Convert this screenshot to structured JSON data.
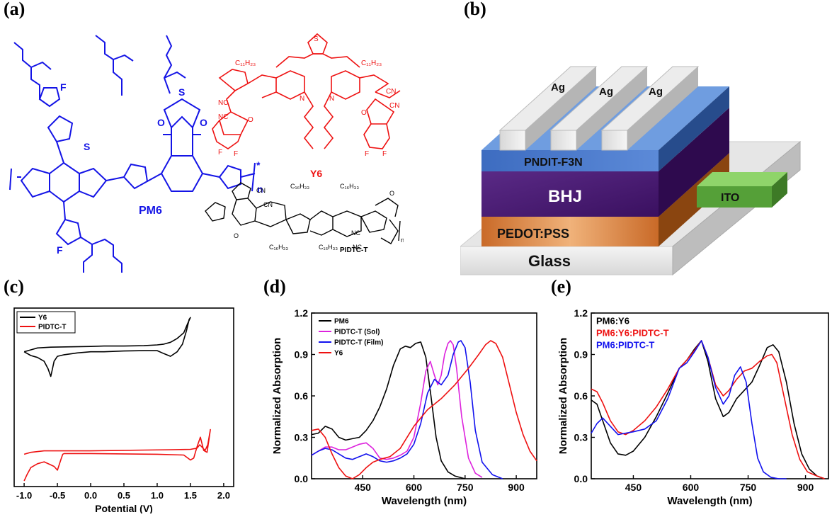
{
  "panels": {
    "a": "(a)",
    "b": "(b)",
    "c": "(c)",
    "d": "(d)",
    "e": "(e)"
  },
  "structures": {
    "pm6_label": "PM6",
    "y6_label": "Y6",
    "pidtc_label": "PIDTC-T",
    "colors": {
      "pm6": "#1414e6",
      "y6": "#ee1111",
      "pidtc": "#000000"
    },
    "pm6_atoms": {
      "f": "F",
      "s": "S",
      "o": "O",
      "n": "n",
      "star": "*"
    },
    "y6_atoms": {
      "c11": "C₁₁H₂₃",
      "cn": "CN",
      "nc": "NC",
      "n": "N",
      "f": "F",
      "s": "S",
      "o": "O"
    },
    "pidtc_atoms": {
      "c16": "C₁₆H₃₃",
      "cn": "CN",
      "nc": "NC",
      "o": "O",
      "s": "S",
      "n": "n"
    }
  },
  "device": {
    "ag1": "Ag",
    "ag2": "Ag",
    "ag3": "Ag",
    "pndit": "PNDIT-F3N",
    "bhj": "BHJ",
    "ito": "ITO",
    "pedot": "PEDOT:PSS",
    "glass": "Glass"
  },
  "chart_data": [
    {
      "id": "c",
      "type": "line",
      "xlabel": "Potential (V)",
      "ylabel": "",
      "xlim": [
        -1.15,
        2.15
      ],
      "xticks": [
        "-1.0",
        "-0.5",
        "0.0",
        "0.5",
        "1.0",
        "1.5",
        "2.0"
      ],
      "xtick_values": [
        -1.0,
        -0.5,
        0.0,
        0.5,
        1.0,
        1.5,
        2.0
      ],
      "legend_position": "top-left",
      "series": [
        {
          "name": "Y6",
          "color": "#000000",
          "x": [
            -1.0,
            -0.9,
            -0.8,
            -0.7,
            -0.64,
            -0.6,
            -0.58,
            -0.55,
            -0.5,
            -0.4,
            -0.2,
            0.0,
            0.2,
            0.5,
            0.8,
            1.0,
            1.1,
            1.2,
            1.3,
            1.38,
            1.44,
            1.48,
            1.5,
            1.46,
            1.4,
            1.3,
            1.2,
            1.1,
            1.0,
            0.8,
            0.5,
            0.2,
            0.0,
            -0.3,
            -0.6,
            -0.8,
            -0.9,
            -1.0
          ],
          "y": [
            -0.3,
            -0.4,
            -0.45,
            -0.55,
            -0.75,
            -0.95,
            -0.8,
            -0.55,
            -0.42,
            -0.38,
            -0.33,
            -0.3,
            -0.3,
            -0.28,
            -0.27,
            -0.27,
            -0.35,
            -0.42,
            -0.3,
            -0.1,
            0.25,
            0.55,
            0.6,
            0.45,
            0.2,
            0.05,
            -0.05,
            -0.1,
            -0.12,
            -0.14,
            -0.15,
            -0.15,
            -0.16,
            -0.17,
            -0.18,
            -0.2,
            -0.25,
            -0.3
          ]
        },
        {
          "name": "PIDTC-T",
          "color": "#ee1111",
          "x": [
            -1.0,
            -0.96,
            -0.9,
            -0.8,
            -0.7,
            -0.6,
            -0.55,
            -0.5,
            -0.45,
            -0.42,
            -0.4,
            -0.3,
            0.0,
            0.5,
            1.0,
            1.4,
            1.5,
            1.55,
            1.6,
            1.65,
            1.7,
            1.75,
            1.78,
            1.8,
            1.76,
            1.72,
            1.68,
            1.64,
            1.6,
            1.5,
            1.2,
            0.8,
            0.4,
            0.0,
            -0.4,
            -0.7,
            -0.9,
            -1.0
          ],
          "y": [
            -3.7,
            -3.55,
            -3.35,
            -3.25,
            -3.2,
            -3.28,
            -3.32,
            -3.42,
            -3.15,
            -3.0,
            -2.98,
            -2.98,
            -2.98,
            -2.99,
            -3.0,
            -3.02,
            -3.15,
            -3.1,
            -2.8,
            -2.55,
            -2.9,
            -2.95,
            -2.6,
            -2.35,
            -2.75,
            -2.9,
            -2.82,
            -2.75,
            -2.84,
            -2.87,
            -2.88,
            -2.89,
            -2.9,
            -2.91,
            -2.91,
            -2.91,
            -2.95,
            -3.0
          ]
        }
      ],
      "ylim": [
        -3.85,
        0.85
      ]
    },
    {
      "id": "d",
      "type": "line",
      "xlabel": "Wavelength (nm)",
      "ylabel": "Normalized Absorption",
      "xlim": [
        300,
        960
      ],
      "ylim": [
        0.0,
        1.2
      ],
      "xticks": [
        "450",
        "600",
        "750",
        "900"
      ],
      "xtick_values": [
        450,
        600,
        750,
        900
      ],
      "yticks": [
        "0.0",
        "0.3",
        "0.6",
        "0.9",
        "1.2"
      ],
      "ytick_values": [
        0.0,
        0.3,
        0.6,
        0.9,
        1.2
      ],
      "legend_position": "top-left",
      "series": [
        {
          "name": "PM6",
          "color": "#000000",
          "x": [
            300,
            320,
            340,
            360,
            380,
            400,
            420,
            440,
            460,
            480,
            500,
            520,
            540,
            560,
            575,
            590,
            605,
            620,
            635,
            650,
            665,
            680,
            700,
            720,
            750
          ],
          "y": [
            0.32,
            0.33,
            0.38,
            0.36,
            0.3,
            0.28,
            0.29,
            0.3,
            0.35,
            0.42,
            0.52,
            0.65,
            0.82,
            0.94,
            0.96,
            0.95,
            0.98,
            0.99,
            0.88,
            0.6,
            0.3,
            0.13,
            0.05,
            0.02,
            0.0
          ]
        },
        {
          "name": "PIDTC-T (Sol)",
          "color": "#dd22dd",
          "x": [
            300,
            320,
            340,
            360,
            380,
            400,
            420,
            440,
            460,
            480,
            500,
            520,
            540,
            560,
            580,
            600,
            620,
            635,
            648,
            660,
            670,
            680,
            690,
            700,
            707,
            715,
            725,
            740,
            760,
            780,
            800
          ],
          "y": [
            0.17,
            0.2,
            0.23,
            0.23,
            0.21,
            0.21,
            0.23,
            0.25,
            0.26,
            0.22,
            0.15,
            0.14,
            0.15,
            0.17,
            0.2,
            0.3,
            0.55,
            0.78,
            0.85,
            0.75,
            0.68,
            0.75,
            0.9,
            0.98,
            1.0,
            0.97,
            0.8,
            0.45,
            0.15,
            0.04,
            0.01
          ]
        },
        {
          "name": "PIDTC-T (Film)",
          "color": "#1111ee",
          "x": [
            300,
            320,
            340,
            360,
            380,
            400,
            420,
            440,
            460,
            480,
            500,
            520,
            540,
            560,
            580,
            600,
            620,
            640,
            660,
            680,
            700,
            715,
            730,
            738,
            750,
            765,
            780,
            800,
            830,
            860
          ],
          "y": [
            0.17,
            0.2,
            0.22,
            0.21,
            0.18,
            0.15,
            0.14,
            0.16,
            0.18,
            0.16,
            0.13,
            0.12,
            0.13,
            0.15,
            0.18,
            0.25,
            0.4,
            0.62,
            0.72,
            0.68,
            0.75,
            0.9,
            0.99,
            1.0,
            0.95,
            0.7,
            0.35,
            0.12,
            0.03,
            0.0
          ]
        },
        {
          "name": "Y6",
          "color": "#ee1111",
          "x": [
            300,
            320,
            340,
            360,
            380,
            400,
            420,
            440,
            460,
            480,
            500,
            530,
            560,
            600,
            640,
            680,
            720,
            760,
            790,
            810,
            825,
            840,
            860,
            880,
            900,
            920,
            940,
            960
          ],
          "y": [
            0.35,
            0.36,
            0.3,
            0.18,
            0.08,
            0.02,
            0.0,
            0.03,
            0.08,
            0.12,
            0.14,
            0.16,
            0.22,
            0.38,
            0.5,
            0.58,
            0.68,
            0.8,
            0.9,
            0.97,
            1.0,
            0.98,
            0.88,
            0.68,
            0.48,
            0.32,
            0.2,
            0.13
          ]
        }
      ]
    },
    {
      "id": "e",
      "type": "line",
      "xlabel": "Wavelength (nm)",
      "ylabel": "Normalized Absorption",
      "xlim": [
        340,
        960
      ],
      "ylim": [
        0.0,
        1.2
      ],
      "xticks": [
        "450",
        "600",
        "750",
        "900"
      ],
      "xtick_values": [
        450,
        600,
        750,
        900
      ],
      "yticks": [
        "0.0",
        "0.3",
        "0.6",
        "0.9",
        "1.2"
      ],
      "ytick_values": [
        0.0,
        0.3,
        0.6,
        0.9,
        1.2
      ],
      "legend_position": "top-left",
      "series": [
        {
          "name": "PM6:Y6",
          "color": "#000000",
          "x": [
            340,
            355,
            370,
            390,
            410,
            430,
            450,
            480,
            510,
            540,
            570,
            590,
            610,
            628,
            645,
            665,
            685,
            700,
            720,
            740,
            760,
            780,
            800,
            815,
            830,
            850,
            870,
            890,
            910,
            930,
            950
          ],
          "y": [
            0.57,
            0.54,
            0.42,
            0.26,
            0.18,
            0.17,
            0.2,
            0.3,
            0.45,
            0.62,
            0.8,
            0.86,
            0.94,
            1.0,
            0.85,
            0.58,
            0.45,
            0.48,
            0.58,
            0.64,
            0.7,
            0.82,
            0.95,
            0.97,
            0.92,
            0.7,
            0.4,
            0.18,
            0.07,
            0.02,
            0.0
          ]
        },
        {
          "name": "PM6:Y6:PIDTC-T",
          "color": "#ee1111",
          "x": [
            340,
            355,
            370,
            390,
            410,
            430,
            450,
            480,
            510,
            540,
            570,
            590,
            610,
            628,
            645,
            665,
            685,
            700,
            720,
            740,
            760,
            780,
            800,
            812,
            825,
            845,
            865,
            885,
            905,
            930,
            950
          ],
          "y": [
            0.65,
            0.63,
            0.55,
            0.42,
            0.34,
            0.32,
            0.35,
            0.42,
            0.52,
            0.65,
            0.8,
            0.86,
            0.93,
            1.0,
            0.88,
            0.68,
            0.6,
            0.64,
            0.72,
            0.78,
            0.8,
            0.85,
            0.89,
            0.9,
            0.84,
            0.58,
            0.32,
            0.14,
            0.05,
            0.02,
            0.0
          ]
        },
        {
          "name": "PM6:PIDTC-T",
          "color": "#1111ee",
          "x": [
            340,
            355,
            370,
            390,
            410,
            430,
            450,
            480,
            510,
            540,
            570,
            590,
            610,
            628,
            645,
            665,
            685,
            700,
            715,
            730,
            745,
            760,
            775,
            790,
            810,
            830,
            850
          ],
          "y": [
            0.33,
            0.4,
            0.44,
            0.38,
            0.32,
            0.33,
            0.34,
            0.36,
            0.42,
            0.58,
            0.8,
            0.84,
            0.92,
            1.0,
            0.88,
            0.66,
            0.54,
            0.6,
            0.75,
            0.81,
            0.7,
            0.4,
            0.15,
            0.05,
            0.01,
            0.0,
            0.0
          ]
        }
      ]
    }
  ]
}
